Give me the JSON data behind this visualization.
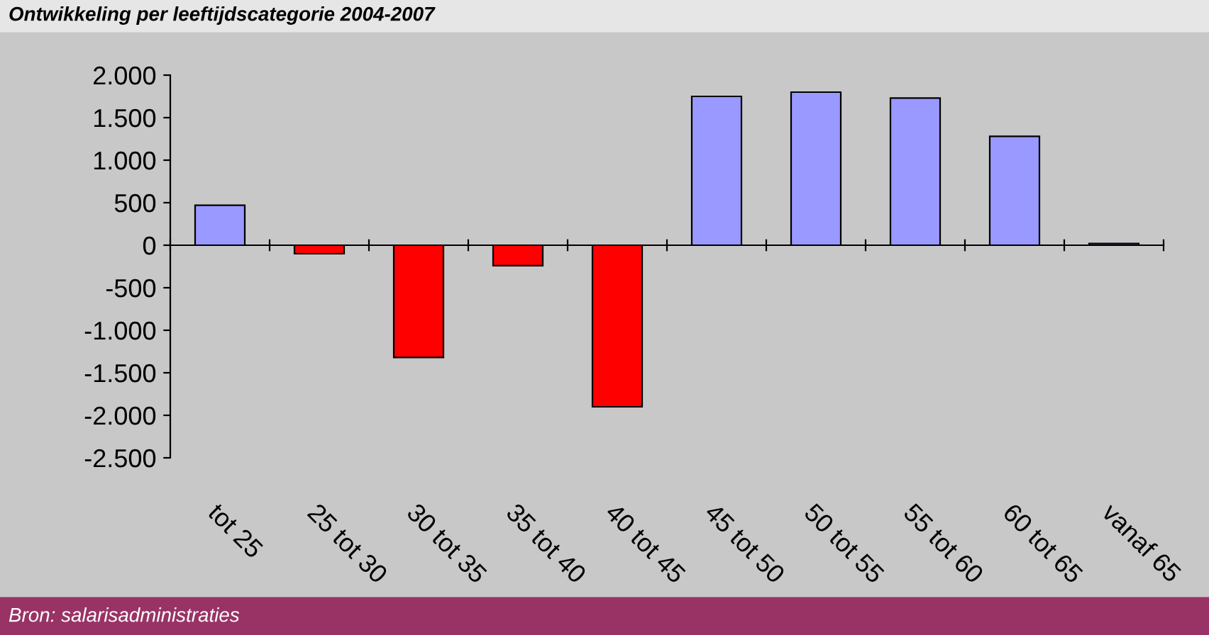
{
  "chart_data": {
    "type": "bar",
    "title": "Ontwikkeling per leeftijdscategorie 2004-2007",
    "categories": [
      "tot 25",
      "25 tot 30",
      "30 tot 35",
      "35 tot 40",
      "40 tot 45",
      "45 tot 50",
      "50 tot 55",
      "55 tot 60",
      "60 tot 65",
      "vanaf 65"
    ],
    "values": [
      470,
      -100,
      -1320,
      -240,
      -1900,
      1750,
      1800,
      1730,
      1280,
      20
    ],
    "colors": [
      "#9999ff",
      "#ff0000",
      "#ff0000",
      "#ff0000",
      "#ff0000",
      "#9999ff",
      "#9999ff",
      "#9999ff",
      "#9999ff",
      "#9999ff"
    ],
    "ylim": [
      -2500,
      2000
    ],
    "yticks": [
      {
        "value": -2500,
        "label": "-2.500"
      },
      {
        "value": -2000,
        "label": "-2.000"
      },
      {
        "value": -1500,
        "label": "-1.500"
      },
      {
        "value": -1000,
        "label": "-1.000"
      },
      {
        "value": -500,
        "label": "-500"
      },
      0,
      500,
      {
        "value": 1000,
        "label": "1.000"
      },
      {
        "value": 1500,
        "label": "1.500"
      },
      {
        "value": 2000,
        "label": "2.000"
      }
    ],
    "legend": false,
    "annotations": [
      "Bron: salarisadministraties"
    ]
  }
}
